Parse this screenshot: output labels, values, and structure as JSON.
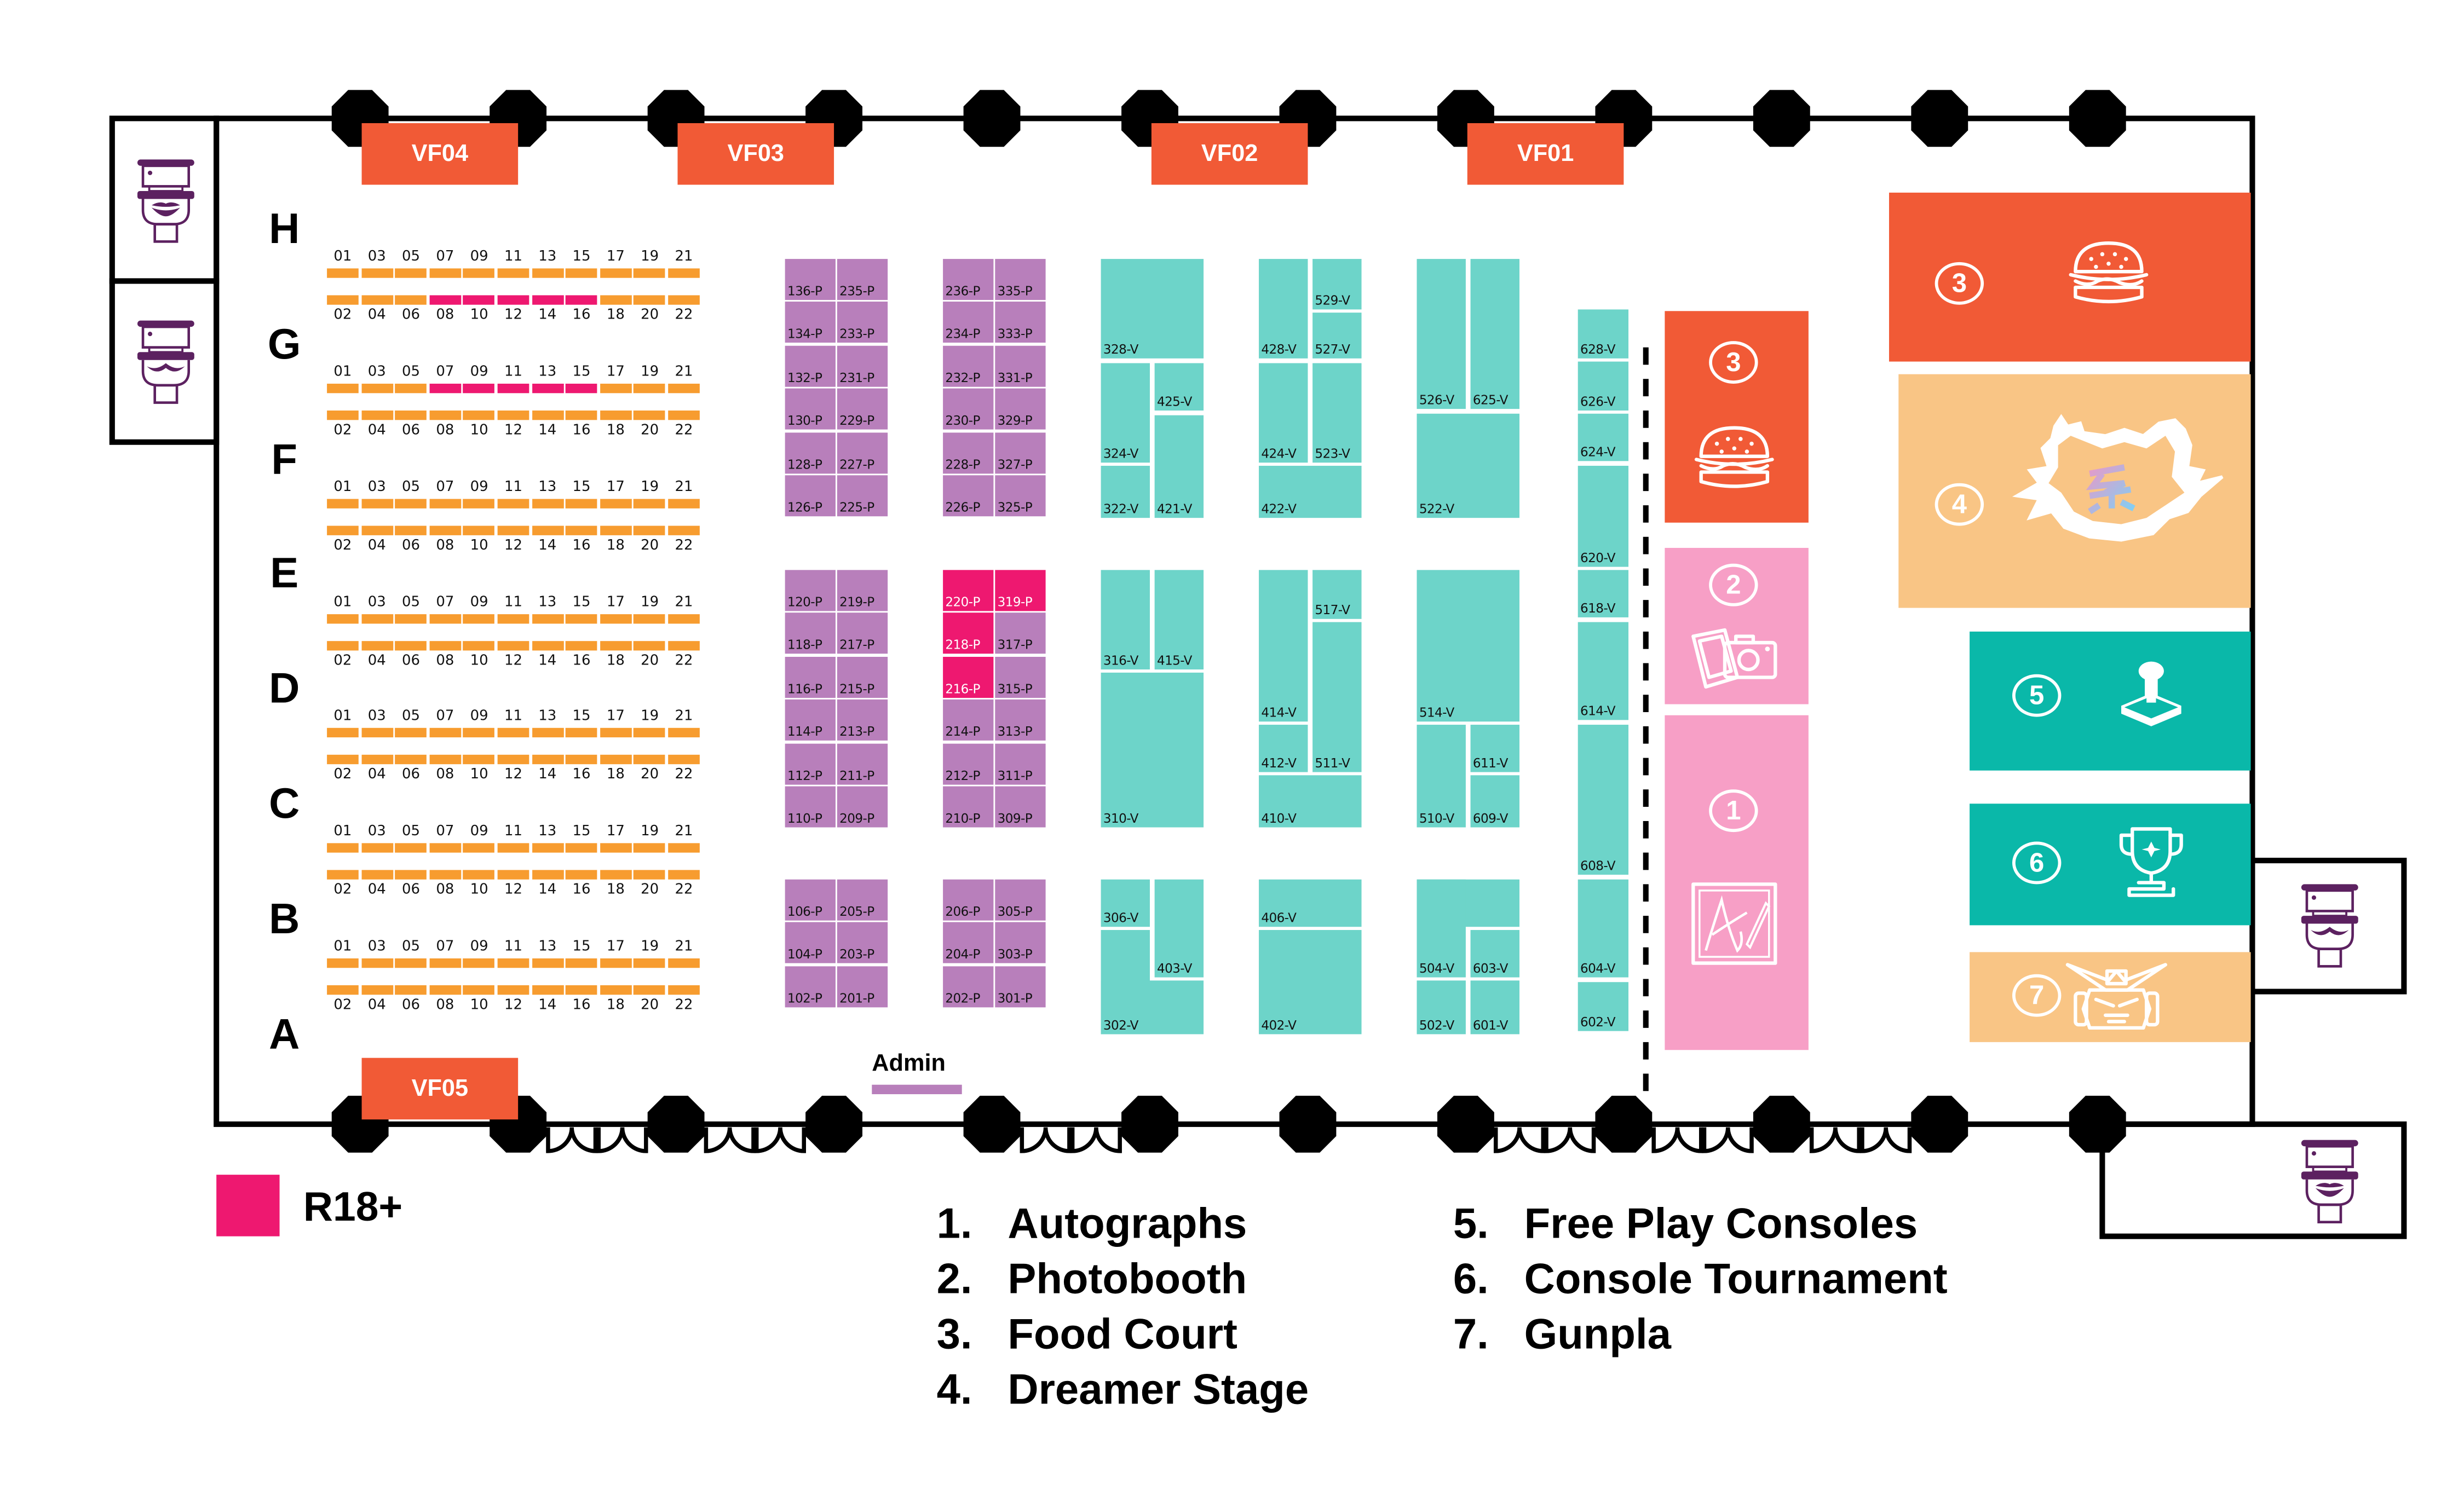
{
  "colors": {
    "table": "#f79c2f",
    "r18": "#ee1870",
    "booth_p": "#b87fbb",
    "booth_v": "#6dd4c9",
    "vf": "#f15a36",
    "food": "#f15a36",
    "pink_area": "#f79fc6",
    "peach_area": "#f9c585",
    "teal_area": "#0ab8a9",
    "toilet": "#5c2160",
    "wall": "#000000"
  },
  "row_letters": [
    "H",
    "G",
    "F",
    "E",
    "D",
    "C",
    "B",
    "A"
  ],
  "table_numbers": {
    "odd": [
      "01",
      "03",
      "05",
      "07",
      "09",
      "11",
      "13",
      "15",
      "17",
      "19",
      "21"
    ],
    "even": [
      "02",
      "04",
      "06",
      "08",
      "10",
      "12",
      "14",
      "16",
      "18",
      "20",
      "22"
    ]
  },
  "table_strips": [
    {
      "top_r18": [],
      "bottom_r18": [
        3,
        4,
        5,
        6,
        7
      ]
    },
    {
      "top_r18": [
        3,
        4,
        5,
        6,
        7
      ],
      "bottom_r18": []
    },
    {
      "top_r18": [],
      "bottom_r18": []
    },
    {
      "top_r18": [],
      "bottom_r18": []
    },
    {
      "top_r18": [],
      "bottom_r18": []
    },
    {
      "top_r18": [],
      "bottom_r18": []
    },
    {
      "top_r18": [],
      "bottom_r18": []
    }
  ],
  "vendor_flags": [
    "VF04",
    "VF03",
    "VF02",
    "VF01",
    "VF05"
  ],
  "booths_p": [
    "136-P",
    "134-P",
    "132-P",
    "130-P",
    "128-P",
    "126-P",
    "235-P",
    "233-P",
    "231-P",
    "229-P",
    "227-P",
    "225-P",
    "236-P",
    "234-P",
    "232-P",
    "230-P",
    "228-P",
    "226-P",
    "335-P",
    "333-P",
    "331-P",
    "329-P",
    "327-P",
    "325-P",
    "120-P",
    "118-P",
    "116-P",
    "114-P",
    "112-P",
    "110-P",
    "219-P",
    "217-P",
    "215-P",
    "213-P",
    "211-P",
    "209-P",
    "220-P",
    "218-P",
    "216-P",
    "214-P",
    "212-P",
    "210-P",
    "319-P",
    "317-P",
    "315-P",
    "313-P",
    "311-P",
    "309-P",
    "106-P",
    "104-P",
    "102-P",
    "205-P",
    "203-P",
    "201-P",
    "206-P",
    "204-P",
    "202-P",
    "305-P",
    "303-P",
    "301-P"
  ],
  "booths_r18": [
    "220-P",
    "319-P",
    "218-P",
    "216-P"
  ],
  "booths_v": [
    "328-V",
    "324-V",
    "322-V",
    "425-V",
    "421-V",
    "428-V",
    "529-V",
    "527-V",
    "424-V",
    "523-V",
    "422-V",
    "526-V",
    "625-V",
    "522-V",
    "316-V",
    "415-V",
    "310-V",
    "414-V",
    "517-V",
    "511-V",
    "412-V",
    "410-V",
    "514-V",
    "510-V",
    "611-V",
    "609-V",
    "306-V",
    "403-V",
    "302-V",
    "406-V",
    "402-V",
    "504-V",
    "603-V",
    "502-V",
    "601-V",
    "628-V",
    "626-V",
    "624-V",
    "620-V",
    "618-V",
    "614-V",
    "608-V",
    "604-V",
    "602-V"
  ],
  "admin": {
    "label": "Admin"
  },
  "areas": [
    {
      "id": "food-court-small",
      "number": "3",
      "icon": "burger-icon"
    },
    {
      "id": "photobooth",
      "number": "2",
      "icon": "camera-icon"
    },
    {
      "id": "autographs",
      "number": "1",
      "icon": "signature-icon"
    },
    {
      "id": "food-court",
      "number": "3",
      "icon": "burger-icon"
    },
    {
      "id": "dreamer-stage",
      "number": "4",
      "icon": "stage-logo-icon"
    },
    {
      "id": "free-play-consoles",
      "number": "5",
      "icon": "joystick-icon"
    },
    {
      "id": "console-tournament",
      "number": "6",
      "icon": "trophy-icon"
    },
    {
      "id": "gunpla",
      "number": "7",
      "icon": "gundam-head-icon"
    }
  ],
  "restrooms": [
    {
      "type": "female",
      "icon": "toilet-lips-icon"
    },
    {
      "type": "male",
      "icon": "toilet-moustache-icon"
    },
    {
      "type": "male",
      "icon": "toilet-moustache-icon"
    },
    {
      "type": "female",
      "icon": "toilet-lips-icon"
    }
  ],
  "legend": {
    "r18_label": "R18+",
    "items": [
      {
        "n": "1.",
        "label": "Autographs"
      },
      {
        "n": "2.",
        "label": "Photobooth"
      },
      {
        "n": "3.",
        "label": "Food Court"
      },
      {
        "n": "4.",
        "label": "Dreamer Stage"
      },
      {
        "n": "5.",
        "label": "Free Play Consoles"
      },
      {
        "n": "6.",
        "label": "Console Tournament"
      },
      {
        "n": "7.",
        "label": "Gunpla"
      }
    ]
  }
}
